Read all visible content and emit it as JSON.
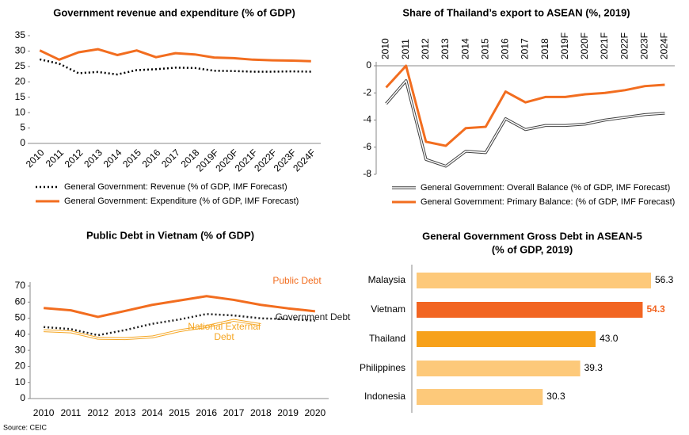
{
  "chart_data": [
    {
      "type": "line",
      "title": "Government revenue and expenditure  (% of GDP)",
      "categories": [
        "2010",
        "2011",
        "2012",
        "2013",
        "2014",
        "2015",
        "2016",
        "2017",
        "2018",
        "2019F",
        "2020F",
        "2021F",
        "2022F",
        "2023F",
        "2024F"
      ],
      "series": [
        {
          "name": "General Government: Revenue (% of GDP, IMF Forecast)",
          "color": "#000000",
          "style": "dotted",
          "values": [
            27.3,
            25.9,
            22.8,
            23.2,
            22.4,
            23.8,
            24.1,
            24.6,
            24.5,
            23.6,
            23.5,
            23.3,
            23.3,
            23.4,
            23.3
          ]
        },
        {
          "name": "General Government: Expenditure (% of GDP, IMF Forecast)",
          "color": "#f26d1f",
          "style": "solid",
          "values": [
            30.2,
            27.2,
            29.6,
            30.6,
            28.7,
            30.2,
            28.0,
            29.3,
            28.9,
            27.9,
            27.7,
            27.2,
            27.0,
            26.9,
            26.7
          ]
        }
      ],
      "ylim": [
        0,
        35
      ],
      "yticks": [
        0,
        5,
        10,
        15,
        20,
        25,
        30,
        35
      ],
      "legend": "bottom"
    },
    {
      "type": "line",
      "title": "Share of Thailand’s export to ASEAN  (%, 2019)",
      "categories": [
        "2010",
        "2011",
        "2012",
        "2013",
        "2014",
        "2015",
        "2016",
        "2017",
        "2018",
        "2019F",
        "2020F",
        "2021F",
        "2022F",
        "2023F",
        "2024F"
      ],
      "series": [
        {
          "name": "General Government: Overall Balance (% of GDP, IMF Forecast)",
          "color": "#404040",
          "style": "double",
          "values": [
            -2.8,
            -1.1,
            -6.9,
            -7.4,
            -6.3,
            -6.4,
            -3.9,
            -4.7,
            -4.4,
            -4.4,
            -4.3,
            -4.0,
            -3.8,
            -3.6,
            -3.5
          ]
        },
        {
          "name": "General Government: Primary Balance: (% of GDP, IMF Forecast)",
          "color": "#f26d1f",
          "style": "solid",
          "values": [
            -1.6,
            0.0,
            -5.6,
            -5.9,
            -4.6,
            -4.5,
            -1.9,
            -2.7,
            -2.3,
            -2.3,
            -2.1,
            -2.0,
            -1.8,
            -1.5,
            -1.4
          ]
        }
      ],
      "ylim": [
        -8,
        0
      ],
      "yticks": [
        -8,
        -6,
        -4,
        -2,
        0
      ],
      "legend": "bottom"
    },
    {
      "type": "line",
      "title": "Public Debt in Vietnam (% of GDP)",
      "categories": [
        "2010",
        "2011",
        "2012",
        "2013",
        "2014",
        "2015",
        "2016",
        "2017",
        "2018",
        "2019",
        "2020"
      ],
      "series": [
        {
          "name": "Public Debt",
          "color": "#f26d1f",
          "style": "solid",
          "values": [
            56.3,
            54.9,
            50.8,
            54.5,
            58.3,
            61.0,
            63.7,
            61.4,
            58.3,
            56.1,
            54.3
          ]
        },
        {
          "name": "Government Debt",
          "color": "#222222",
          "style": "dotted",
          "values": [
            44.5,
            43.2,
            39.4,
            42.6,
            46.5,
            49.2,
            52.6,
            51.7,
            49.9,
            49.4,
            48.5
          ]
        },
        {
          "name": "National External Debt",
          "color": "#f5a623",
          "style": "double",
          "values": [
            42.2,
            41.5,
            37.5,
            37.3,
            38.3,
            42.2,
            44.8,
            48.7,
            46.0,
            null,
            null
          ]
        }
      ],
      "ylim": [
        0,
        70
      ],
      "yticks": [
        0,
        10,
        20,
        30,
        40,
        50,
        60,
        70
      ],
      "legend": "inline"
    },
    {
      "type": "hbar",
      "title": "General Government Gross Debt in ASEAN-5",
      "subtitle": "(% of GDP, 2019)",
      "categories": [
        "Malaysia",
        "Vietnam",
        "Thailand",
        "Philippines",
        "Indonesia"
      ],
      "values": [
        56.3,
        54.3,
        43.0,
        39.3,
        30.3
      ],
      "value_labels": [
        "56.3",
        "54.3",
        "43.0",
        "39.3",
        "30.3"
      ],
      "colors": [
        "#fdc97a",
        "#f26522",
        "#f7a11a",
        "#fdc97a",
        "#fdc97a"
      ],
      "value_label_colors": [
        "#000000",
        "#f26522",
        "#000000",
        "#000000",
        "#000000"
      ]
    }
  ],
  "source": "Source: CEIC"
}
